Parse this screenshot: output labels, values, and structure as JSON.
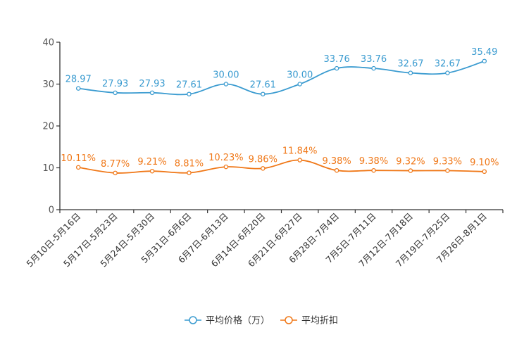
{
  "chart_data": {
    "type": "line",
    "title": "",
    "xlabel": "",
    "ylabel": "",
    "ylim": [
      0,
      40
    ],
    "yticks": [
      0,
      10,
      20,
      30,
      40
    ],
    "categories": [
      "5月10日-5月16日",
      "5月17日-5月23日",
      "5月24日-5月30日",
      "5月31日-6月6日",
      "6月7日-6月13日",
      "6月14日-6月20日",
      "6月21日-6月27日",
      "6月28日-7月4日",
      "7月5日-7月11日",
      "7月12日-7月18日",
      "7月19日-7月25日",
      "7月26日-8月1日"
    ],
    "series": [
      {
        "name": "平均价格（万）",
        "color": "#3a9bd0",
        "values": [
          28.97,
          27.93,
          27.93,
          27.61,
          30.0,
          27.61,
          30.0,
          33.76,
          33.76,
          32.67,
          32.67,
          35.49
        ],
        "labels": [
          "28.97",
          "27.93",
          "27.93",
          "27.61",
          "30.00",
          "27.61",
          "30.00",
          "33.76",
          "33.76",
          "32.67",
          "32.67",
          "35.49"
        ]
      },
      {
        "name": "平均折扣",
        "color": "#f07818",
        "values": [
          10.11,
          8.77,
          9.21,
          8.81,
          10.23,
          9.86,
          11.84,
          9.38,
          9.38,
          9.32,
          9.33,
          9.1
        ],
        "labels": [
          "10.11%",
          "8.77%",
          "9.21%",
          "8.81%",
          "10.23%",
          "9.86%",
          "11.84%",
          "9.38%",
          "9.38%",
          "9.32%",
          "9.33%",
          "9.10%"
        ]
      }
    ],
    "legend_position": "bottom-center"
  }
}
